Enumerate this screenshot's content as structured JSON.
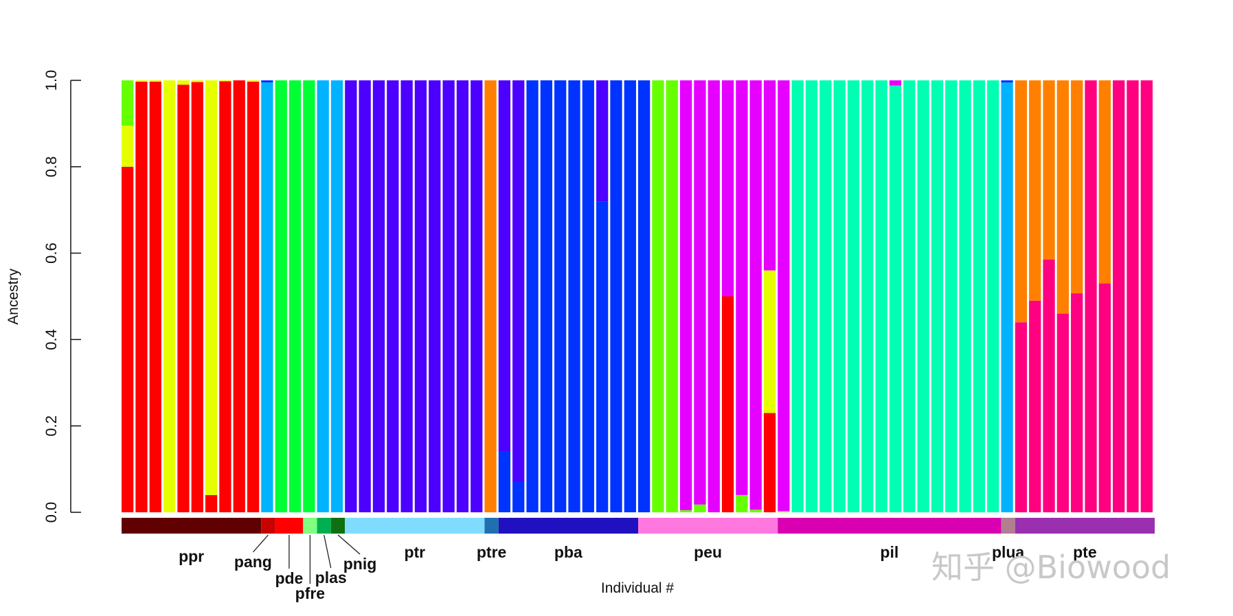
{
  "chart_data": {
    "type": "bar",
    "stacked": true,
    "ylabel": "Ancestry",
    "xlabel": "Individual #",
    "ylim": [
      0,
      1
    ],
    "yticks": [
      "0.0",
      "0.2",
      "0.4",
      "0.6",
      "0.8",
      "1.0"
    ],
    "n_individuals": 74,
    "cluster_colors": {
      "K1": "#ff0000",
      "K2": "#e6ff00",
      "K3": "#66ff00",
      "K4": "#00ff33",
      "K5": "#00ffb2",
      "K6": "#00b3ff",
      "K7": "#0033ff",
      "K8": "#4c00ff",
      "K9": "#e500ff",
      "K10": "#ff0080",
      "K11": "#ff8000"
    },
    "individuals": [
      {
        "K1": 0.8,
        "K2": 0.095,
        "K3": 0.105
      },
      {
        "K1": 0.997,
        "K2": 0.003
      },
      {
        "K1": 0.997,
        "K2": 0.003
      },
      {
        "K2": 1.0
      },
      {
        "K1": 0.99,
        "K2": 0.01
      },
      {
        "K1": 0.996,
        "K2": 0.004
      },
      {
        "K1": 0.04,
        "K2": 0.96
      },
      {
        "K1": 0.998,
        "K2": 0.002
      },
      {
        "K1": 1.0
      },
      {
        "K1": 0.997,
        "K2": 0.003
      },
      {
        "K6": 0.995,
        "K7": 0.005
      },
      {
        "K4": 1.0
      },
      {
        "K4": 1.0
      },
      {
        "K4": 1.0
      },
      {
        "K6": 1.0
      },
      {
        "K6": 1.0
      },
      {
        "K8": 1.0
      },
      {
        "K8": 1.0
      },
      {
        "K8": 1.0
      },
      {
        "K8": 1.0
      },
      {
        "K8": 1.0
      },
      {
        "K8": 1.0
      },
      {
        "K8": 1.0
      },
      {
        "K8": 1.0
      },
      {
        "K8": 1.0
      },
      {
        "K8": 1.0
      },
      {
        "K11": 1.0
      },
      {
        "K7": 0.14,
        "K8": 0.86
      },
      {
        "K7": 0.07,
        "K8": 0.93
      },
      {
        "K7": 1.0
      },
      {
        "K7": 1.0
      },
      {
        "K7": 1.0
      },
      {
        "K7": 1.0
      },
      {
        "K7": 1.0
      },
      {
        "K7": 0.72,
        "K8": 0.28
      },
      {
        "K7": 1.0
      },
      {
        "K7": 1.0
      },
      {
        "K7": 1.0
      },
      {
        "K3": 1.0
      },
      {
        "K3": 1.0
      },
      {
        "K3": 0.005,
        "K9": 0.995
      },
      {
        "K3": 0.018,
        "K9": 0.982
      },
      {
        "K9": 1.0
      },
      {
        "K1": 0.5,
        "K9": 0.5
      },
      {
        "K3": 0.04,
        "K9": 0.96
      },
      {
        "K3": 0.006,
        "K9": 0.994
      },
      {
        "K1": 0.23,
        "K2": 0.33,
        "K9": 0.44
      },
      {
        "K3": 0.003,
        "K9": 0.997
      },
      {
        "K5": 1.0
      },
      {
        "K5": 1.0
      },
      {
        "K5": 1.0
      },
      {
        "K5": 1.0
      },
      {
        "K5": 1.0
      },
      {
        "K5": 1.0
      },
      {
        "K5": 1.0
      },
      {
        "K5": 0.988,
        "K9": 0.012
      },
      {
        "K5": 1.0
      },
      {
        "K5": 1.0
      },
      {
        "K5": 1.0
      },
      {
        "K5": 1.0
      },
      {
        "K5": 1.0
      },
      {
        "K5": 1.0
      },
      {
        "K5": 1.0
      },
      {
        "K6": 0.995,
        "K7": 0.005
      },
      {
        "K11": 0.56,
        "K10": 0.44
      },
      {
        "K11": 0.51,
        "K10": 0.49
      },
      {
        "K11": 0.415,
        "K10": 0.585
      },
      {
        "K11": 0.54,
        "K10": 0.46
      },
      {
        "K11": 0.493,
        "K10": 0.507
      },
      {
        "K10": 1.0
      },
      {
        "K11": 0.47,
        "K10": 0.53
      },
      {
        "K10": 1.0
      },
      {
        "K10": 1.0
      },
      {
        "K10": 1.0
      }
    ],
    "groups": [
      {
        "name": "ppr",
        "start": 0,
        "count": 10,
        "color": "#600000"
      },
      {
        "name": "pang",
        "start": 10,
        "count": 1,
        "color": "#c80000"
      },
      {
        "name": "pde",
        "start": 11,
        "count": 2,
        "color": "#ff0000"
      },
      {
        "name": "pfre",
        "start": 13,
        "count": 1,
        "color": "#80ff80"
      },
      {
        "name": "plas",
        "start": 14,
        "count": 1,
        "color": "#00b050"
      },
      {
        "name": "pnig",
        "start": 15,
        "count": 1,
        "color": "#107010"
      },
      {
        "name": "ptr",
        "start": 16,
        "count": 10,
        "color": "#80dcff"
      },
      {
        "name": "ptre",
        "start": 26,
        "count": 1,
        "color": "#2070b0"
      },
      {
        "name": "pba",
        "start": 27,
        "count": 10,
        "color": "#2010c0"
      },
      {
        "name": "peu",
        "start": 37,
        "count": 10,
        "color": "#ff78e0"
      },
      {
        "name": "pil",
        "start": 47,
        "count": 16,
        "color": "#d800b0"
      },
      {
        "name": "plua",
        "start": 63,
        "count": 1,
        "color": "#b08090"
      },
      {
        "name": "pte",
        "start": 64,
        "count": 10,
        "color": "#9a30b0"
      }
    ]
  },
  "watermark": "知乎 @Biowood"
}
